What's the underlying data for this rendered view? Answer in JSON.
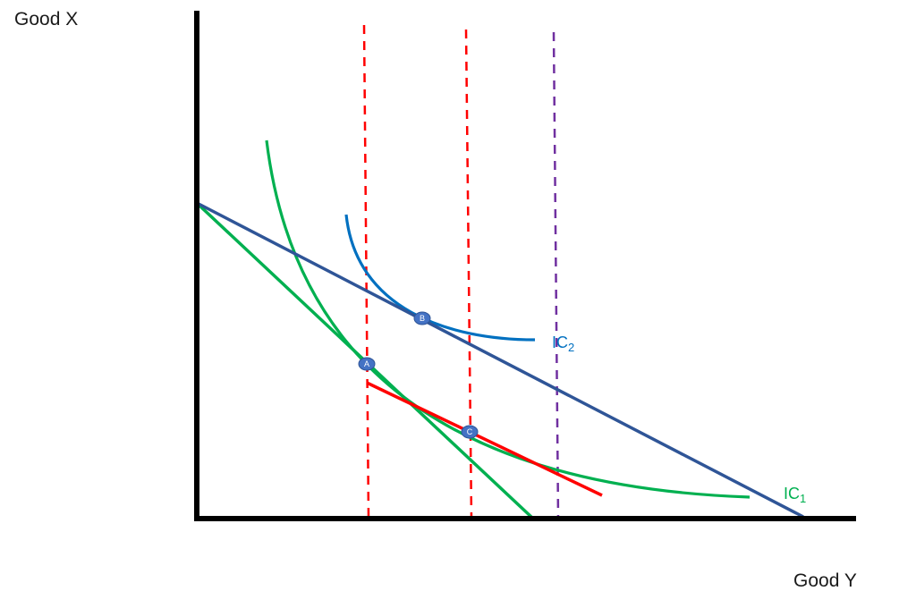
{
  "axes": {
    "y_label": "Good X",
    "x_label": "Good Y"
  },
  "curves": {
    "ic1": {
      "base": "IC",
      "sub": "1",
      "color": "#00b050"
    },
    "ic2": {
      "base": "IC",
      "sub": "2",
      "color": "#0070c0"
    }
  },
  "points": {
    "a": "A",
    "b": "B",
    "c": "C"
  },
  "colors": {
    "axis": "#000000",
    "budget_line": "#2f5597",
    "steep_budget_line": "#00b050",
    "compensated_line": "#ff0000",
    "red_dashed": "#ff0000",
    "purple_dashed": "#7030a0",
    "point_fill": "#4472c4"
  }
}
